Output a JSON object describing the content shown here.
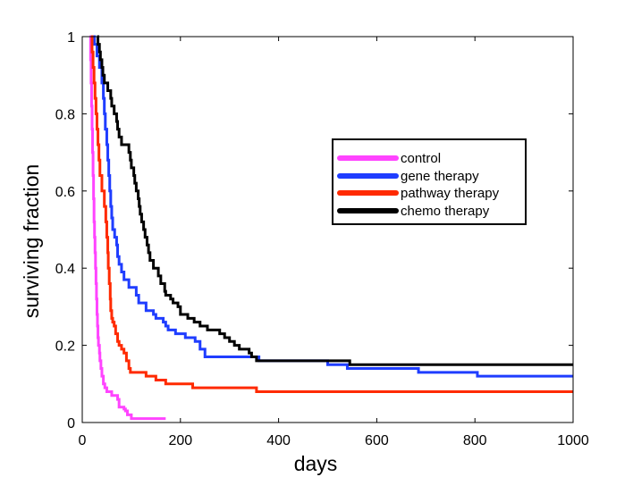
{
  "chart_data": {
    "type": "line",
    "step": true,
    "title": "",
    "xlabel": "days",
    "ylabel": "surviving fraction",
    "xlim": [
      0,
      1000
    ],
    "ylim": [
      0,
      1
    ],
    "xticks": [
      0,
      200,
      400,
      600,
      800,
      1000
    ],
    "yticks": [
      0,
      0.2,
      0.4,
      0.6,
      0.8,
      1
    ],
    "xtick_labels": [
      "0",
      "200",
      "400",
      "600",
      "800",
      "1000"
    ],
    "ytick_labels": [
      "0",
      "0.2",
      "0.4",
      "0.6",
      "0.8",
      "1"
    ],
    "grid": false,
    "legend_position": "upper-right",
    "series": [
      {
        "name": "control",
        "color": "#ff44ff",
        "points": [
          [
            15,
            1
          ],
          [
            17,
            0.94
          ],
          [
            18,
            0.88
          ],
          [
            19,
            0.82
          ],
          [
            20,
            0.76
          ],
          [
            21,
            0.7
          ],
          [
            22,
            0.64
          ],
          [
            23,
            0.58
          ],
          [
            24,
            0.52
          ],
          [
            25,
            0.48
          ],
          [
            26,
            0.44
          ],
          [
            27,
            0.4
          ],
          [
            28,
            0.36
          ],
          [
            29,
            0.32
          ],
          [
            30,
            0.28
          ],
          [
            31,
            0.25
          ],
          [
            32,
            0.22
          ],
          [
            33,
            0.2
          ],
          [
            35,
            0.18
          ],
          [
            36,
            0.16
          ],
          [
            38,
            0.14
          ],
          [
            40,
            0.12
          ],
          [
            43,
            0.1
          ],
          [
            46,
            0.09
          ],
          [
            50,
            0.08
          ],
          [
            60,
            0.07
          ],
          [
            72,
            0.06
          ],
          [
            75,
            0.04
          ],
          [
            85,
            0.035
          ],
          [
            88,
            0.03
          ],
          [
            92,
            0.02
          ],
          [
            100,
            0.01
          ],
          [
            170,
            0.01
          ]
        ]
      },
      {
        "name": "gene therapy",
        "color": "#1f3dff",
        "points": [
          [
            18,
            1
          ],
          [
            25,
            0.98
          ],
          [
            30,
            0.95
          ],
          [
            35,
            0.92
          ],
          [
            40,
            0.88
          ],
          [
            43,
            0.84
          ],
          [
            45,
            0.8
          ],
          [
            47,
            0.76
          ],
          [
            50,
            0.72
          ],
          [
            52,
            0.68
          ],
          [
            54,
            0.64
          ],
          [
            56,
            0.6
          ],
          [
            58,
            0.56
          ],
          [
            60,
            0.53
          ],
          [
            62,
            0.5
          ],
          [
            66,
            0.48
          ],
          [
            70,
            0.46
          ],
          [
            72,
            0.43
          ],
          [
            75,
            0.41
          ],
          [
            80,
            0.39
          ],
          [
            85,
            0.37
          ],
          [
            95,
            0.35
          ],
          [
            110,
            0.33
          ],
          [
            115,
            0.31
          ],
          [
            130,
            0.29
          ],
          [
            145,
            0.28
          ],
          [
            150,
            0.27
          ],
          [
            165,
            0.26
          ],
          [
            170,
            0.25
          ],
          [
            175,
            0.24
          ],
          [
            190,
            0.23
          ],
          [
            210,
            0.22
          ],
          [
            230,
            0.21
          ],
          [
            240,
            0.19
          ],
          [
            250,
            0.17
          ],
          [
            350,
            0.17
          ],
          [
            360,
            0.16
          ],
          [
            480,
            0.16
          ],
          [
            500,
            0.15
          ],
          [
            520,
            0.15
          ],
          [
            540,
            0.14
          ],
          [
            680,
            0.14
          ],
          [
            685,
            0.13
          ],
          [
            800,
            0.13
          ],
          [
            805,
            0.12
          ],
          [
            1000,
            0.12
          ]
        ]
      },
      {
        "name": "pathway therapy",
        "color": "#ff2a00",
        "points": [
          [
            18,
            1
          ],
          [
            20,
            0.96
          ],
          [
            22,
            0.92
          ],
          [
            24,
            0.88
          ],
          [
            26,
            0.84
          ],
          [
            28,
            0.8
          ],
          [
            30,
            0.76
          ],
          [
            32,
            0.72
          ],
          [
            34,
            0.68
          ],
          [
            36,
            0.64
          ],
          [
            40,
            0.6
          ],
          [
            45,
            0.56
          ],
          [
            48,
            0.52
          ],
          [
            50,
            0.48
          ],
          [
            52,
            0.44
          ],
          [
            53,
            0.4
          ],
          [
            55,
            0.36
          ],
          [
            57,
            0.32
          ],
          [
            58,
            0.29
          ],
          [
            60,
            0.27
          ],
          [
            62,
            0.26
          ],
          [
            65,
            0.25
          ],
          [
            68,
            0.23
          ],
          [
            72,
            0.21
          ],
          [
            75,
            0.2
          ],
          [
            80,
            0.19
          ],
          [
            85,
            0.18
          ],
          [
            90,
            0.16
          ],
          [
            95,
            0.14
          ],
          [
            98,
            0.13
          ],
          [
            125,
            0.13
          ],
          [
            130,
            0.12
          ],
          [
            150,
            0.11
          ],
          [
            160,
            0.11
          ],
          [
            170,
            0.1
          ],
          [
            220,
            0.1
          ],
          [
            225,
            0.09
          ],
          [
            350,
            0.09
          ],
          [
            355,
            0.08
          ],
          [
            1000,
            0.08
          ]
        ]
      },
      {
        "name": "chemo therapy",
        "color": "#000000",
        "points": [
          [
            30,
            1
          ],
          [
            32,
            0.98
          ],
          [
            35,
            0.96
          ],
          [
            37,
            0.94
          ],
          [
            40,
            0.92
          ],
          [
            42,
            0.9
          ],
          [
            45,
            0.88
          ],
          [
            52,
            0.86
          ],
          [
            58,
            0.84
          ],
          [
            60,
            0.82
          ],
          [
            65,
            0.8
          ],
          [
            70,
            0.78
          ],
          [
            72,
            0.76
          ],
          [
            75,
            0.74
          ],
          [
            80,
            0.72
          ],
          [
            95,
            0.7
          ],
          [
            98,
            0.68
          ],
          [
            100,
            0.66
          ],
          [
            105,
            0.64
          ],
          [
            107,
            0.62
          ],
          [
            110,
            0.6
          ],
          [
            114,
            0.58
          ],
          [
            116,
            0.56
          ],
          [
            118,
            0.54
          ],
          [
            121,
            0.52
          ],
          [
            125,
            0.5
          ],
          [
            128,
            0.48
          ],
          [
            132,
            0.46
          ],
          [
            135,
            0.44
          ],
          [
            138,
            0.42
          ],
          [
            145,
            0.4
          ],
          [
            155,
            0.38
          ],
          [
            160,
            0.36
          ],
          [
            168,
            0.34
          ],
          [
            170,
            0.33
          ],
          [
            180,
            0.32
          ],
          [
            185,
            0.31
          ],
          [
            195,
            0.3
          ],
          [
            200,
            0.28
          ],
          [
            215,
            0.27
          ],
          [
            228,
            0.26
          ],
          [
            240,
            0.25
          ],
          [
            255,
            0.24
          ],
          [
            280,
            0.23
          ],
          [
            290,
            0.22
          ],
          [
            300,
            0.21
          ],
          [
            310,
            0.2
          ],
          [
            320,
            0.19
          ],
          [
            340,
            0.18
          ],
          [
            345,
            0.17
          ],
          [
            355,
            0.16
          ],
          [
            540,
            0.16
          ],
          [
            545,
            0.15
          ],
          [
            1000,
            0.15
          ]
        ]
      }
    ]
  }
}
